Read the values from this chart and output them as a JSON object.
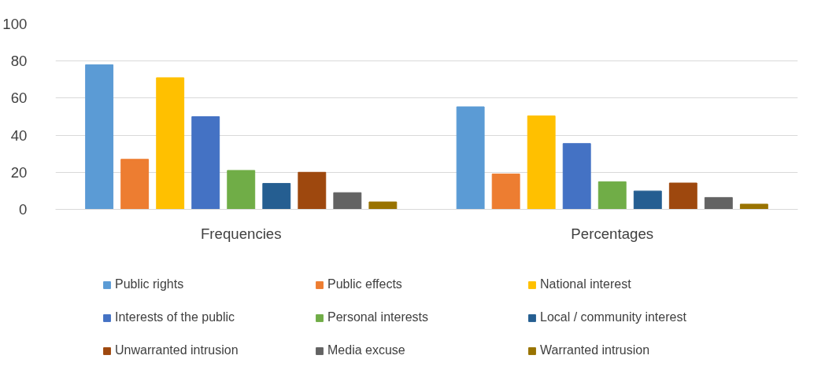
{
  "chart_data": {
    "type": "bar",
    "categories": [
      "Frequencies",
      "Percentages"
    ],
    "series": [
      {
        "name": "Public rights",
        "color": "#5b9bd5",
        "values": [
          78,
          55.3
        ]
      },
      {
        "name": "Public effects",
        "color": "#ed7d31",
        "values": [
          27,
          19.1
        ]
      },
      {
        "name": "National interest",
        "color": "#ffc000",
        "values": [
          71,
          50.4
        ]
      },
      {
        "name": "Interests of the public",
        "color": "#4472c4",
        "values": [
          50,
          35.5
        ]
      },
      {
        "name": "Personal interests",
        "color": "#70ad47",
        "values": [
          21,
          14.9
        ]
      },
      {
        "name": "Local / community interest",
        "color": "#255e91",
        "values": [
          14,
          9.9
        ]
      },
      {
        "name": "Unwarranted intrusion",
        "color": "#9e480e",
        "values": [
          20,
          14.2
        ]
      },
      {
        "name": "Media excuse",
        "color": "#636363",
        "values": [
          9,
          6.4
        ]
      },
      {
        "name": "Warranted intrusion",
        "color": "#997300",
        "values": [
          4,
          2.8
        ]
      }
    ],
    "ylim": [
      0,
      100
    ],
    "yticks": [
      0,
      20,
      40,
      60,
      80,
      100
    ],
    "grid": "y",
    "legend": "bottom"
  }
}
